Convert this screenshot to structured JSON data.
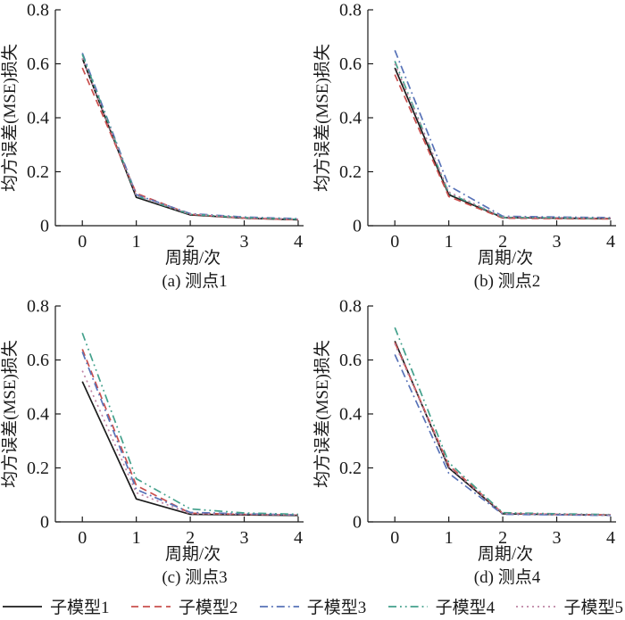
{
  "figure": {
    "background": "#ffffff",
    "text_color": "#1a1a1a",
    "axis_color": "#1a1a1a",
    "xlabel": "周期/次",
    "ylabel": "均方误差(MSE)损失"
  },
  "legend": {
    "position": "bottom",
    "items": [
      {
        "label": "子模型1",
        "color": "#1b1b1b",
        "dash": "solid"
      },
      {
        "label": "子模型2",
        "color": "#c9504e",
        "dash": "dashed"
      },
      {
        "label": "子模型3",
        "color": "#5873b8",
        "dash": "dashdot"
      },
      {
        "label": "子模型4",
        "color": "#43a18c",
        "dash": "dashdotdot"
      },
      {
        "label": "子模型5",
        "color": "#bf84a4",
        "dash": "dotted"
      }
    ]
  },
  "chart_data": [
    {
      "id": "a",
      "type": "line",
      "title": "(a) 测点1",
      "xlabel": "周期/次",
      "ylabel": "均方误差(MSE)损失",
      "x": [
        0,
        1,
        2,
        3,
        4
      ],
      "xlim": [
        -0.5,
        4.1
      ],
      "ylim": [
        0,
        0.8
      ],
      "x_ticks": [
        0,
        1,
        2,
        3,
        4
      ],
      "y_ticks": [
        0,
        0.2,
        0.4,
        0.6,
        0.8
      ],
      "grid": false,
      "series": [
        {
          "name": "子模型1",
          "values": [
            0.62,
            0.105,
            0.04,
            0.028,
            0.022
          ]
        },
        {
          "name": "子模型2",
          "values": [
            0.585,
            0.12,
            0.042,
            0.028,
            0.022
          ]
        },
        {
          "name": "子模型3",
          "values": [
            0.64,
            0.115,
            0.045,
            0.032,
            0.026
          ]
        },
        {
          "name": "子模型4",
          "values": [
            0.635,
            0.11,
            0.042,
            0.03,
            0.024
          ]
        },
        {
          "name": "子模型5",
          "values": [
            0.62,
            0.112,
            0.043,
            0.03,
            0.024
          ]
        }
      ]
    },
    {
      "id": "b",
      "type": "line",
      "title": "(b) 测点2",
      "xlabel": "周期/次",
      "ylabel": "均方误差(MSE)损失",
      "x": [
        0,
        1,
        2,
        3,
        4
      ],
      "xlim": [
        -0.5,
        4.1
      ],
      "ylim": [
        0,
        0.8
      ],
      "x_ticks": [
        0,
        1,
        2,
        3,
        4
      ],
      "y_ticks": [
        0,
        0.2,
        0.4,
        0.6,
        0.8
      ],
      "grid": false,
      "series": [
        {
          "name": "子模型1",
          "values": [
            0.585,
            0.115,
            0.03,
            0.028,
            0.026
          ]
        },
        {
          "name": "子模型2",
          "values": [
            0.56,
            0.108,
            0.028,
            0.026,
            0.025
          ]
        },
        {
          "name": "子模型3",
          "values": [
            0.65,
            0.148,
            0.035,
            0.032,
            0.03
          ]
        },
        {
          "name": "子模型4",
          "values": [
            0.61,
            0.12,
            0.031,
            0.029,
            0.027
          ]
        },
        {
          "name": "子模型5",
          "values": [
            0.6,
            0.125,
            0.032,
            0.03,
            0.028
          ]
        }
      ]
    },
    {
      "id": "c",
      "type": "line",
      "title": "(c) 测点3",
      "xlabel": "周期/次",
      "ylabel": "均方误差(MSE)损失",
      "x": [
        0,
        1,
        2,
        3,
        4
      ],
      "xlim": [
        -0.5,
        4.1
      ],
      "ylim": [
        0,
        0.8
      ],
      "x_ticks": [
        0,
        1,
        2,
        3,
        4
      ],
      "y_ticks": [
        0,
        0.2,
        0.4,
        0.6,
        0.8
      ],
      "grid": false,
      "series": [
        {
          "name": "子模型1",
          "values": [
            0.52,
            0.085,
            0.028,
            0.026,
            0.024
          ]
        },
        {
          "name": "子模型2",
          "values": [
            0.64,
            0.135,
            0.032,
            0.028,
            0.026
          ]
        },
        {
          "name": "子模型3",
          "values": [
            0.63,
            0.12,
            0.035,
            0.03,
            0.026
          ]
        },
        {
          "name": "子模型4",
          "values": [
            0.7,
            0.16,
            0.048,
            0.033,
            0.028
          ]
        },
        {
          "name": "子模型5",
          "values": [
            0.56,
            0.108,
            0.03,
            0.028,
            0.026
          ]
        }
      ]
    },
    {
      "id": "d",
      "type": "line",
      "title": "(d) 测点4",
      "xlabel": "周期/次",
      "ylabel": "均方误差(MSE)损失",
      "x": [
        0,
        1,
        2,
        3,
        4
      ],
      "xlim": [
        -0.5,
        4.1
      ],
      "ylim": [
        0,
        0.8
      ],
      "x_ticks": [
        0,
        1,
        2,
        3,
        4
      ],
      "y_ticks": [
        0,
        0.2,
        0.4,
        0.6,
        0.8
      ],
      "grid": false,
      "series": [
        {
          "name": "子模型1",
          "values": [
            0.67,
            0.2,
            0.03,
            0.027,
            0.025
          ]
        },
        {
          "name": "子模型2",
          "values": [
            0.665,
            0.21,
            0.032,
            0.028,
            0.026
          ]
        },
        {
          "name": "子模型3",
          "values": [
            0.62,
            0.18,
            0.028,
            0.026,
            0.024
          ]
        },
        {
          "name": "子模型4",
          "values": [
            0.72,
            0.22,
            0.034,
            0.03,
            0.027
          ]
        },
        {
          "name": "子模型5",
          "values": [
            0.66,
            0.205,
            0.031,
            0.028,
            0.025
          ]
        }
      ]
    }
  ]
}
